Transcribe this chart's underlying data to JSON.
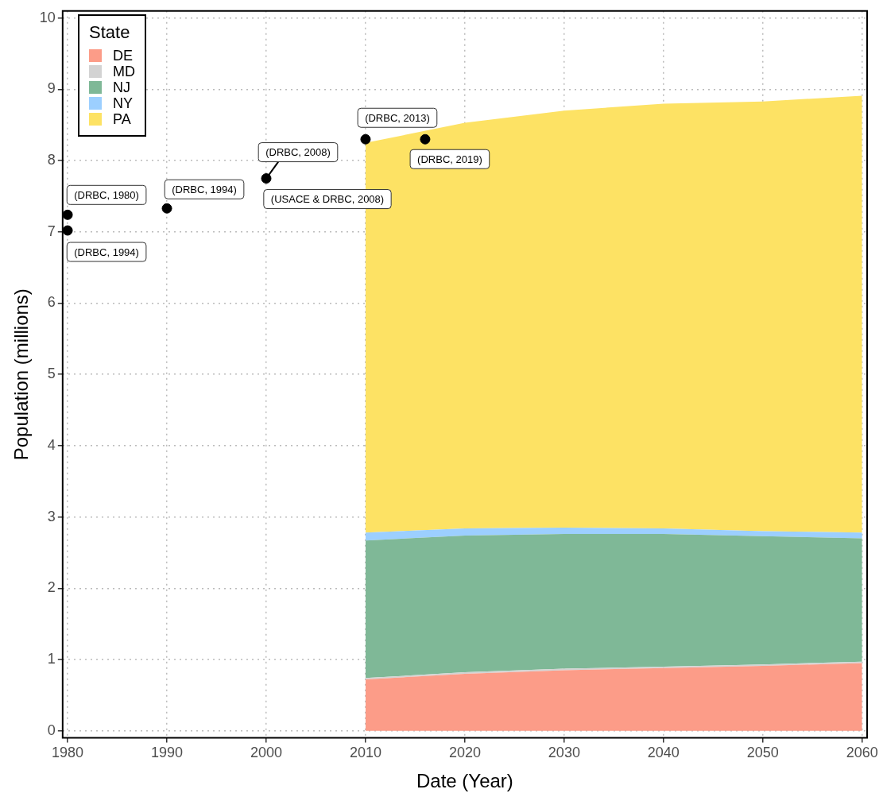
{
  "chart_data": {
    "type": "area",
    "stacked": true,
    "xlabel": "Date (Year)",
    "ylabel": "Population (millions)",
    "legend_title": "State",
    "legend": "top left",
    "grid": true,
    "x": [
      2010,
      2020,
      2030,
      2040,
      2050,
      2060
    ],
    "series": [
      {
        "name": "DE",
        "color": "#fc9c88",
        "values": [
          0.72,
          0.8,
          0.85,
          0.88,
          0.91,
          0.95
        ]
      },
      {
        "name": "MD",
        "color": "#d3d3d3",
        "values": [
          0.02,
          0.02,
          0.02,
          0.02,
          0.02,
          0.02
        ]
      },
      {
        "name": "NJ",
        "color": "#7fb897",
        "values": [
          1.93,
          1.92,
          1.89,
          1.86,
          1.8,
          1.73
        ]
      },
      {
        "name": "NY",
        "color": "#9ccfff",
        "values": [
          0.11,
          0.1,
          0.09,
          0.08,
          0.07,
          0.08
        ]
      },
      {
        "name": "PA",
        "color": "#fde264",
        "values": [
          5.47,
          5.69,
          5.85,
          5.96,
          6.03,
          6.13
        ]
      },
      {
        "type": "scatter",
        "color": "#000000",
        "marker": "circle",
        "x": [
          1980,
          1980,
          1990,
          2000,
          2010,
          2016
        ],
        "values": [
          7.24,
          7.02,
          7.33,
          7.75,
          8.3,
          8.3
        ]
      }
    ],
    "xlim": [
      1979.5,
      2060.5
    ],
    "xticks": [
      1980,
      1990,
      2000,
      2010,
      2020,
      2030,
      2040,
      2050,
      2060
    ],
    "ylim": [
      -0.1,
      10.1
    ],
    "yticks": [
      0,
      1,
      2,
      3,
      4,
      5,
      6,
      7,
      8,
      9,
      10
    ],
    "annotations": [
      {
        "text": "(DRBC, 1980)",
        "x": 1980,
        "y": 7.24
      },
      {
        "text": "(DRBC, 1994)",
        "x": 1980,
        "y": 7.02
      },
      {
        "text": "(DRBC, 1994)",
        "x": 1990,
        "y": 7.33
      },
      {
        "text": "(DRBC, 2008)",
        "x": 2000,
        "y": 7.75
      },
      {
        "text": "(USACE & DRBC, 2008)",
        "x": 2000,
        "y": 7.75
      },
      {
        "text": "(DRBC, 2013)",
        "x": 2010,
        "y": 8.3
      },
      {
        "text": "(DRBC, 2019)",
        "x": 2016,
        "y": 8.3
      }
    ]
  }
}
